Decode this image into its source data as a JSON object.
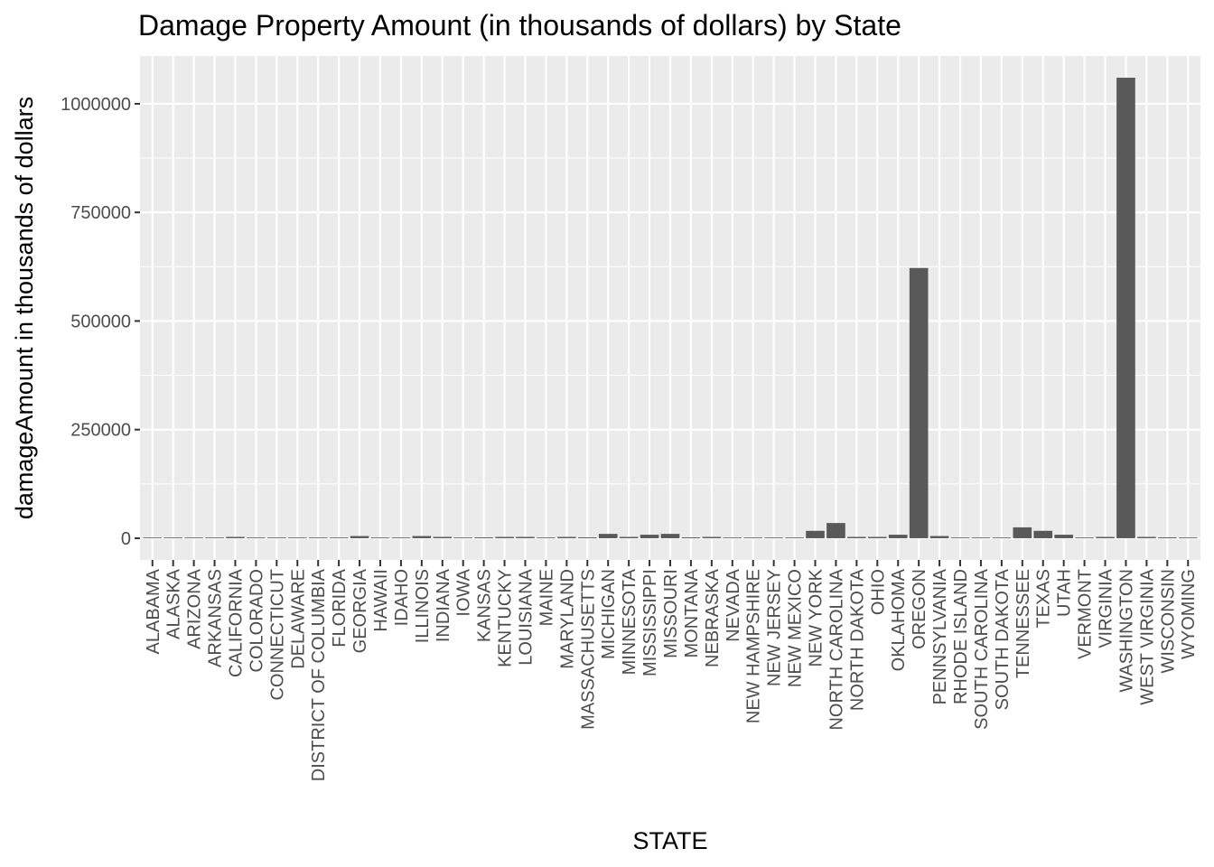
{
  "chart_data": {
    "type": "bar",
    "title": "Damage Property Amount (in thousands of dollars) by State",
    "xlabel": "STATE",
    "ylabel": "damageAmount in thousands of dollars",
    "ylim": [
      -50000,
      1110000
    ],
    "yticks": [
      0,
      250000,
      500000,
      750000,
      1000000
    ],
    "ytick_labels": [
      "0",
      "250000",
      "500000",
      "750000",
      "1000000"
    ],
    "grid": true,
    "colors": {
      "panel": "#ebebeb",
      "grid": "#ffffff",
      "bar": "#595959",
      "tick": "#333333"
    },
    "categories": [
      "ALABAMA",
      "ALASKA",
      "ARIZONA",
      "ARKANSAS",
      "CALIFORNIA",
      "COLORADO",
      "CONNECTICUT",
      "DELAWARE",
      "DISTRICT OF COLUMBIA",
      "FLORIDA",
      "GEORGIA",
      "HAWAII",
      "IDAHO",
      "ILLINOIS",
      "INDIANA",
      "IOWA",
      "KANSAS",
      "KENTUCKY",
      "LOUISIANA",
      "MAINE",
      "MARYLAND",
      "MASSACHUSETTS",
      "MICHIGAN",
      "MINNESOTA",
      "MISSISSIPPI",
      "MISSOURI",
      "MONTANA",
      "NEBRASKA",
      "NEVADA",
      "NEW HAMPSHIRE",
      "NEW JERSEY",
      "NEW MEXICO",
      "NEW YORK",
      "NORTH CAROLINA",
      "NORTH DAKOTA",
      "OHIO",
      "OKLAHOMA",
      "OREGON",
      "PENNSYLVANIA",
      "RHODE ISLAND",
      "SOUTH CAROLINA",
      "SOUTH DAKOTA",
      "TENNESSEE",
      "TEXAS",
      "UTAH",
      "VERMONT",
      "VIRGINIA",
      "WASHINGTON",
      "WEST VIRGINIA",
      "WISCONSIN",
      "WYOMING"
    ],
    "values": [
      200,
      0,
      1000,
      1500,
      3000,
      500,
      1500,
      300,
      300,
      800,
      5000,
      0,
      1500,
      5000,
      3000,
      0,
      2000,
      3000,
      3000,
      0,
      3000,
      2000,
      10000,
      3000,
      8000,
      10000,
      2000,
      3000,
      0,
      0,
      1500,
      0,
      17000,
      35000,
      3000,
      3000,
      8000,
      622000,
      5000,
      0,
      1500,
      500,
      25000,
      17000,
      8000,
      1000,
      3000,
      1060000,
      3000,
      2000,
      0
    ]
  }
}
